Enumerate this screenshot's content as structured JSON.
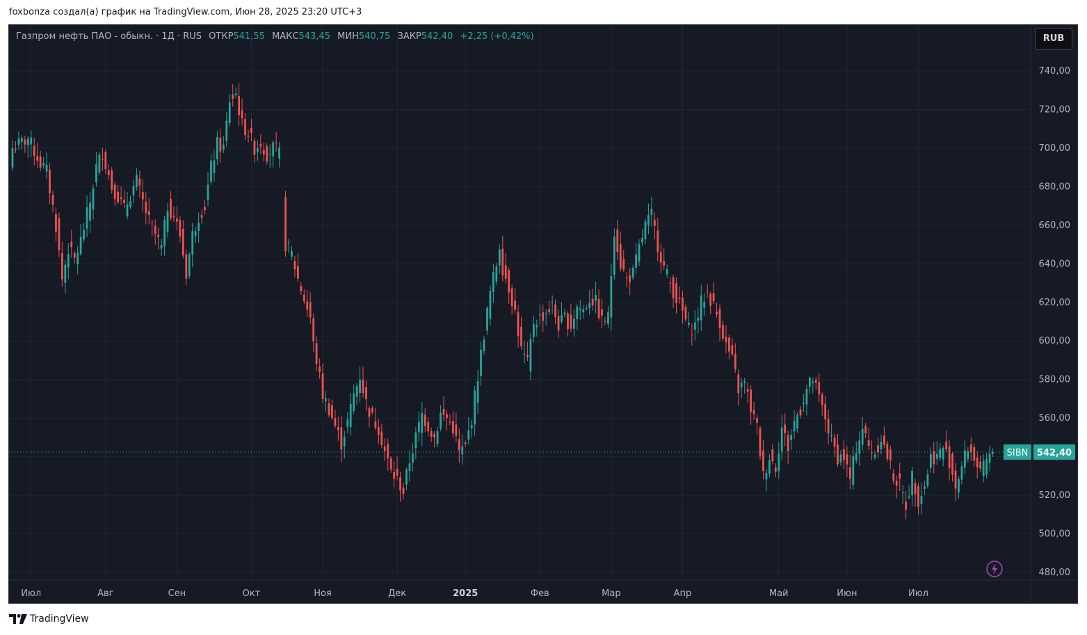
{
  "header": {
    "attribution": "foxbonza создал(а) график на TradingView.com, Июн 28, 2025 23:20 UTC+3"
  },
  "legend": {
    "symbol": "Газпром нефть ПАО - обыкн. · 1Д · RUS",
    "open_label": "ОТКР",
    "open_value": "541,55",
    "high_label": "МАКС",
    "high_value": "543,45",
    "low_label": "МИН",
    "low_value": "540,75",
    "close_label": "ЗАКР",
    "close_value": "542,40",
    "change": "+2,25 (+0,42%)"
  },
  "currency_button": "RUB",
  "price_tag": {
    "ticker": "SIBN",
    "value": "542,40"
  },
  "footer": {
    "brand": "TradingView"
  },
  "colors": {
    "up": "#26a69a",
    "down": "#ef5350",
    "background": "#161a25",
    "grid": "#232632",
    "text": "#b2b5be",
    "alert": "#ab47bc"
  },
  "icons": {
    "alert": "lightning-icon",
    "logo": "tradingview-logo-icon"
  },
  "chart_data": {
    "type": "candlestick",
    "title": "Газпром нефть ПАО - обыкн.",
    "interval": "1Д",
    "currency": "RUB",
    "y_axis": {
      "ticks": [
        "740,00",
        "720,00",
        "700,00",
        "680,00",
        "660,00",
        "640,00",
        "620,00",
        "600,00",
        "580,00",
        "560,00",
        "540,00",
        "520,00",
        "500,00",
        "480,00"
      ],
      "tick_values": [
        740,
        720,
        700,
        680,
        660,
        640,
        620,
        600,
        580,
        560,
        540,
        520,
        500,
        480
      ],
      "range": [
        476,
        752
      ]
    },
    "x_axis": {
      "labels": [
        "Июл",
        "Авг",
        "Сен",
        "Окт",
        "Ноя",
        "Дек",
        "2025",
        "Фев",
        "Мар",
        "Апр",
        "Май",
        "Июн",
        "Июл"
      ],
      "bold": [
        false,
        false,
        false,
        false,
        false,
        false,
        true,
        false,
        false,
        false,
        false,
        false,
        false
      ],
      "label_candle_index": [
        6,
        30,
        53,
        77,
        100,
        124,
        146,
        170,
        193,
        216,
        247,
        269,
        292
      ]
    },
    "last_price": 542.4,
    "grid": true,
    "close_path": [
      [
        0,
        700
      ],
      [
        5,
        705
      ],
      [
        9,
        692
      ],
      [
        11,
        688
      ],
      [
        14,
        660
      ],
      [
        16,
        632
      ],
      [
        18,
        648
      ],
      [
        20,
        642
      ],
      [
        22,
        652
      ],
      [
        25,
        672
      ],
      [
        27,
        690
      ],
      [
        29,
        698
      ],
      [
        30,
        692
      ],
      [
        32,
        680
      ],
      [
        34,
        675
      ],
      [
        36,
        668
      ],
      [
        38,
        676
      ],
      [
        40,
        683
      ],
      [
        42,
        672
      ],
      [
        44,
        662
      ],
      [
        46,
        655
      ],
      [
        48,
        648
      ],
      [
        50,
        670
      ],
      [
        52,
        665
      ],
      [
        54,
        655
      ],
      [
        56,
        635
      ],
      [
        58,
        655
      ],
      [
        60,
        665
      ],
      [
        62,
        670
      ],
      [
        64,
        690
      ],
      [
        66,
        702
      ],
      [
        68,
        700
      ],
      [
        70,
        725
      ],
      [
        72,
        728
      ],
      [
        74,
        712
      ],
      [
        76,
        708
      ],
      [
        78,
        700
      ],
      [
        80,
        703
      ],
      [
        82,
        697
      ],
      [
        84,
        700
      ],
      [
        86,
        697
      ],
      [
        88,
        650
      ],
      [
        90,
        645
      ],
      [
        92,
        632
      ],
      [
        94,
        622
      ],
      [
        96,
        612
      ],
      [
        97,
        598
      ],
      [
        98,
        590
      ],
      [
        100,
        572
      ],
      [
        102,
        565
      ],
      [
        104,
        556
      ],
      [
        106,
        547
      ],
      [
        108,
        558
      ],
      [
        110,
        572
      ],
      [
        112,
        582
      ],
      [
        114,
        568
      ],
      [
        116,
        560
      ],
      [
        118,
        555
      ],
      [
        120,
        543
      ],
      [
        122,
        532
      ],
      [
        124,
        528
      ],
      [
        126,
        522
      ],
      [
        128,
        538
      ],
      [
        130,
        550
      ],
      [
        132,
        562
      ],
      [
        134,
        556
      ],
      [
        136,
        550
      ],
      [
        138,
        562
      ],
      [
        140,
        560
      ],
      [
        142,
        555
      ],
      [
        144,
        542
      ],
      [
        146,
        545
      ],
      [
        148,
        560
      ],
      [
        150,
        582
      ],
      [
        152,
        604
      ],
      [
        154,
        625
      ],
      [
        156,
        640
      ],
      [
        157,
        650
      ],
      [
        158,
        638
      ],
      [
        160,
        628
      ],
      [
        162,
        615
      ],
      [
        164,
        595
      ],
      [
        166,
        588
      ],
      [
        168,
        610
      ],
      [
        170,
        612
      ],
      [
        172,
        615
      ],
      [
        174,
        618
      ],
      [
        176,
        608
      ],
      [
        178,
        612
      ],
      [
        180,
        608
      ],
      [
        182,
        618
      ],
      [
        184,
        616
      ],
      [
        186,
        622
      ],
      [
        188,
        620
      ],
      [
        190,
        610
      ],
      [
        192,
        612
      ],
      [
        194,
        658
      ],
      [
        196,
        640
      ],
      [
        198,
        632
      ],
      [
        200,
        635
      ],
      [
        202,
        648
      ],
      [
        204,
        660
      ],
      [
        206,
        665
      ],
      [
        208,
        650
      ],
      [
        210,
        638
      ],
      [
        212,
        630
      ],
      [
        214,
        622
      ],
      [
        216,
        615
      ],
      [
        218,
        606
      ],
      [
        220,
        608
      ],
      [
        222,
        620
      ],
      [
        224,
        625
      ],
      [
        226,
        618
      ],
      [
        228,
        610
      ],
      [
        230,
        598
      ],
      [
        232,
        590
      ],
      [
        234,
        575
      ],
      [
        236,
        578
      ],
      [
        238,
        565
      ],
      [
        240,
        555
      ],
      [
        242,
        530
      ],
      [
        244,
        540
      ],
      [
        246,
        535
      ],
      [
        248,
        555
      ],
      [
        250,
        545
      ],
      [
        252,
        558
      ],
      [
        254,
        565
      ],
      [
        256,
        575
      ],
      [
        258,
        580
      ],
      [
        260,
        570
      ],
      [
        262,
        560
      ],
      [
        264,
        548
      ],
      [
        266,
        540
      ],
      [
        268,
        540
      ],
      [
        270,
        528
      ],
      [
        272,
        545
      ],
      [
        274,
        555
      ],
      [
        276,
        545
      ],
      [
        278,
        542
      ],
      [
        280,
        550
      ],
      [
        282,
        540
      ],
      [
        284,
        530
      ],
      [
        286,
        525
      ],
      [
        288,
        515
      ],
      [
        290,
        530
      ],
      [
        292,
        518
      ],
      [
        294,
        525
      ],
      [
        296,
        540
      ],
      [
        298,
        540
      ],
      [
        300,
        545
      ],
      [
        302,
        538
      ],
      [
        304,
        525
      ],
      [
        306,
        535
      ],
      [
        308,
        545
      ],
      [
        310,
        540
      ],
      [
        312,
        530
      ],
      [
        314,
        538
      ],
      [
        316,
        542.4
      ]
    ]
  }
}
